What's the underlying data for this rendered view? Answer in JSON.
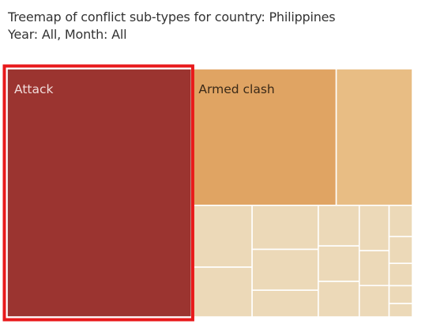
{
  "title": {
    "line1": "Treemap of conflict sub-types for country: Philippines",
    "line2": "Year: All, Month: All"
  },
  "colors": {
    "attack": "#9b3430",
    "armed_clash": "#e0a463",
    "tier3": "#e8bd84",
    "small": "#ecd9b8",
    "selection_outline": "#e8191b",
    "tile_border": "#ffffff"
  },
  "chart_data": {
    "type": "treemap",
    "selected": "Attack",
    "nodes": [
      {
        "label": "Attack",
        "value": 44,
        "color": "#9b3430",
        "text_color": "#f1dcdb"
      },
      {
        "label": "Armed clash",
        "value": 19,
        "color": "#e0a463",
        "text_color": "#3b2a18"
      },
      {
        "label": "",
        "value": 10,
        "color": "#e8bd84"
      },
      {
        "label": "",
        "value": 3.6,
        "color": "#ecd9b8"
      },
      {
        "label": "",
        "value": 2.9,
        "color": "#ecd9b8"
      },
      {
        "label": "",
        "value": 2.8,
        "color": "#ecd9b8"
      },
      {
        "label": "",
        "value": 2.6,
        "color": "#ecd9b8"
      },
      {
        "label": "",
        "value": 1.7,
        "color": "#ecd9b8"
      },
      {
        "label": "",
        "value": 1.6,
        "color": "#ecd9b8"
      },
      {
        "label": "",
        "value": 1.4,
        "color": "#ecd9b8"
      },
      {
        "label": "",
        "value": 1.4,
        "color": "#ecd9b8"
      },
      {
        "label": "",
        "value": 1.3,
        "color": "#ecd9b8"
      },
      {
        "label": "",
        "value": 1.0,
        "color": "#ecd9b8"
      },
      {
        "label": "",
        "value": 0.9,
        "color": "#ecd9b8"
      },
      {
        "label": "",
        "value": 0.7,
        "color": "#ecd9b8"
      },
      {
        "label": "",
        "value": 0.6,
        "color": "#ecd9b8"
      },
      {
        "label": "",
        "value": 0.5,
        "color": "#ecd9b8"
      },
      {
        "label": "",
        "value": 0.4,
        "color": "#ecd9b8"
      },
      {
        "label": "",
        "value": 0.3,
        "color": "#ecd9b8"
      }
    ]
  }
}
